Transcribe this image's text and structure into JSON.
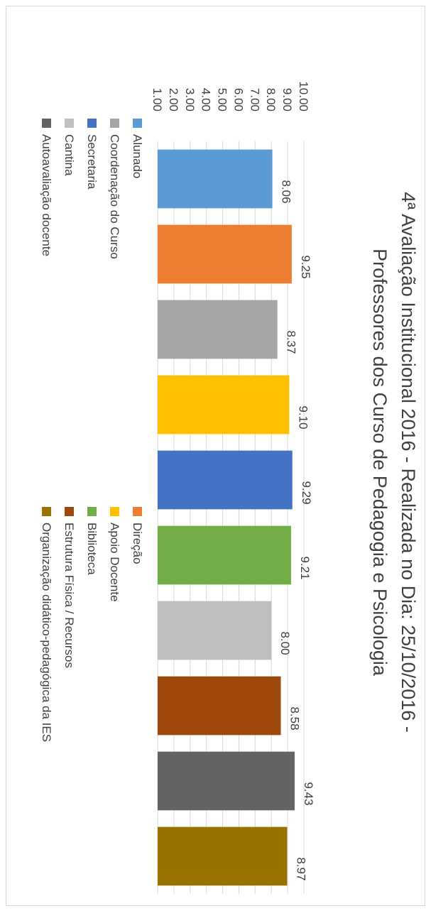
{
  "chart_data": {
    "type": "bar",
    "title": "4ª Avaliação Institucional 2016 - Realizada no Dia: 25/10/2016 - Professores dos Curso de Pedagogia e Psicologia",
    "title_lines": [
      "4ª Avaliação Institucional 2016 - Realizada no Dia: 25/10/2016 -",
      "Professores dos Curso de Pedagogia e Psicologia"
    ],
    "xlabel": "",
    "ylabel": "",
    "ylim": [
      1,
      10
    ],
    "y_ticks": [
      "1.00",
      "2.00",
      "3.00",
      "4.00",
      "5.00",
      "6.00",
      "7.00",
      "8.00",
      "9.00",
      "10.00"
    ],
    "grid": true,
    "legend_position": "bottom",
    "orientation": "rotated-90-clockwise",
    "series": [
      {
        "name": "Alunado",
        "value": 8.06,
        "label": "8.06",
        "color": "#5B9BD5"
      },
      {
        "name": "Direção",
        "value": 9.25,
        "label": "9.25",
        "color": "#ED7D31"
      },
      {
        "name": "Coordenação do Curso",
        "value": 8.37,
        "label": "8.37",
        "color": "#A5A5A5"
      },
      {
        "name": "Apoio Docente",
        "value": 9.1,
        "label": "9.10",
        "color": "#FFC000"
      },
      {
        "name": "Secretaria",
        "value": 9.29,
        "label": "9.29",
        "color": "#4472C4"
      },
      {
        "name": "Biblioteca",
        "value": 9.21,
        "label": "9.21",
        "color": "#70AD47"
      },
      {
        "name": "Cantina",
        "value": 8.0,
        "label": "8.00",
        "color": "#BFBFBF"
      },
      {
        "name": "Estrutura Física / Recursos",
        "value": 8.58,
        "label": "8.58",
        "color": "#9E480E"
      },
      {
        "name": "Autoavaliação docente",
        "value": 9.43,
        "label": "9.43",
        "color": "#636363"
      },
      {
        "name": "Organização didático-pedagógica da IES",
        "value": 8.97,
        "label": "8.97",
        "color": "#997300"
      }
    ],
    "gridline_color": "#d9d9d9",
    "text_color": "#404040"
  }
}
